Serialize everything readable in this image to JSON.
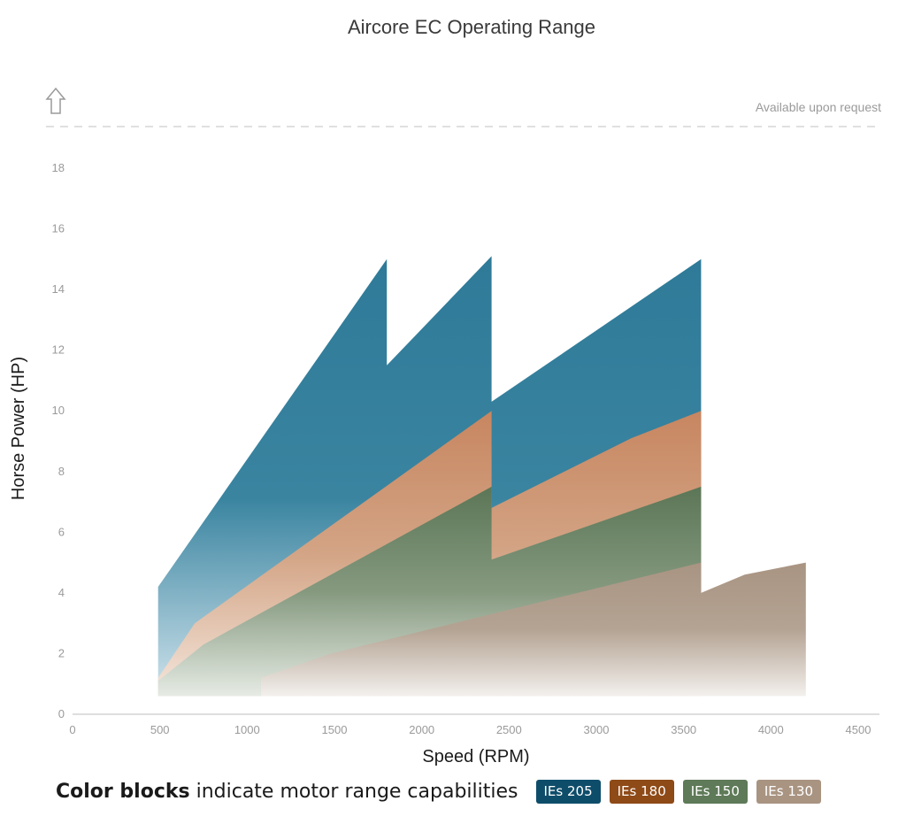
{
  "chart_data": {
    "type": "area",
    "title": "Aircore EC Operating Range",
    "xlabel": "Speed (RPM)",
    "ylabel": "Horse Power (HP)",
    "xlim": [
      0,
      4500
    ],
    "ylim": [
      0,
      18
    ],
    "x_ticks": [
      0,
      500,
      1000,
      1500,
      2000,
      2500,
      3000,
      3500,
      4000,
      4500
    ],
    "y_ticks": [
      0,
      2,
      4,
      6,
      8,
      10,
      12,
      14,
      16,
      18
    ],
    "note": "Available upon request",
    "grid": false,
    "series": [
      {
        "name": "IEs 205",
        "color": "#2e7a98",
        "top": [
          [
            490,
            4.2
          ],
          [
            1800,
            15.0
          ],
          [
            1800,
            11.5
          ],
          [
            2400,
            15.1
          ],
          [
            2400,
            10.3
          ],
          [
            3600,
            15.0
          ]
        ],
        "bottom": [
          [
            490,
            0.6
          ],
          [
            3600,
            0.6
          ]
        ]
      },
      {
        "name": "IEs 180",
        "color": "#c78a62",
        "top": [
          [
            490,
            1.2
          ],
          [
            700,
            3.0
          ],
          [
            2400,
            10.0
          ],
          [
            2400,
            6.8
          ],
          [
            3200,
            9.1
          ],
          [
            3600,
            10.0
          ]
        ],
        "bottom": [
          [
            490,
            0.6
          ],
          [
            3600,
            0.6
          ]
        ]
      },
      {
        "name": "IEs 150",
        "color": "#5e7a58",
        "top": [
          [
            490,
            1.1
          ],
          [
            750,
            2.3
          ],
          [
            2400,
            7.5
          ],
          [
            2400,
            5.1
          ],
          [
            3200,
            6.7
          ],
          [
            3600,
            7.5
          ]
        ],
        "bottom": [
          [
            490,
            0.6
          ],
          [
            3600,
            0.6
          ]
        ]
      },
      {
        "name": "IEs 130",
        "color": "#a99482",
        "top": [
          [
            1080,
            1.2
          ],
          [
            1480,
            2.0
          ],
          [
            3600,
            5.0
          ],
          [
            3600,
            4.0
          ],
          [
            3850,
            4.6
          ],
          [
            4200,
            5.0
          ]
        ],
        "bottom": [
          [
            1080,
            0.6
          ],
          [
            4200,
            0.6
          ]
        ]
      }
    ]
  },
  "legend": {
    "bold_text": "Color blocks",
    "text": "indicate motor range capabilities",
    "items": [
      {
        "label": "IEs 205",
        "color": "#0e4d6a"
      },
      {
        "label": "IEs 180",
        "color": "#8e4a17"
      },
      {
        "label": "IEs 150",
        "color": "#5e7a58"
      },
      {
        "label": "IEs 130",
        "color": "#a99482"
      }
    ]
  }
}
